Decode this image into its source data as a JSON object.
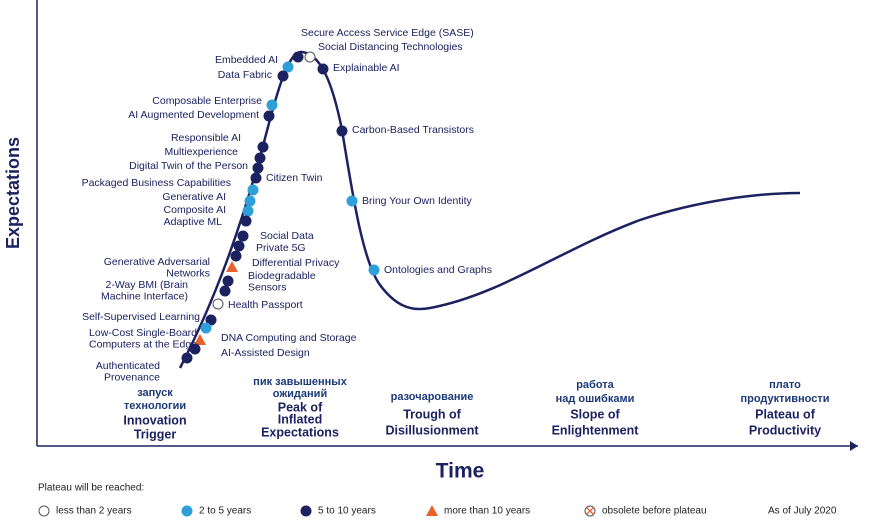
{
  "axes": {
    "y_label": "Expectations",
    "x_label": "Time"
  },
  "phases": [
    {
      "ru": [
        "запуск",
        "технологии"
      ],
      "en": [
        "Innovation",
        "Trigger"
      ]
    },
    {
      "ru": [
        "пик завышенных",
        "ожиданий"
      ],
      "en": [
        "Peak of",
        "Inflated",
        "Expectations"
      ]
    },
    {
      "ru": [
        "разочарование"
      ],
      "en": [
        "Trough of",
        "Disillusionment"
      ]
    },
    {
      "ru": [
        "работа",
        "над ошибками"
      ],
      "en": [
        "Slope of",
        "Enlightenment"
      ]
    },
    {
      "ru": [
        "плато",
        "продуктивности"
      ],
      "en": [
        "Plateau of",
        "Productivity"
      ]
    }
  ],
  "technologies": [
    {
      "label": "Secure Access Service Edge (SASE)",
      "reached": "5 to 10 years"
    },
    {
      "label": "Social Distancing Technologies",
      "reached": "less than 2 years"
    },
    {
      "label": "Embedded AI",
      "reached": "2 to 5 years"
    },
    {
      "label": "Data Fabric",
      "reached": "5 to 10 years"
    },
    {
      "label": "Explainable AI",
      "reached": "5 to 10 years"
    },
    {
      "label": "Composable Enterprise",
      "reached": "2 to 5 years"
    },
    {
      "label": "AI Augmented Development",
      "reached": "5 to 10 years"
    },
    {
      "label": "Carbon-Based Transistors",
      "reached": "5 to 10 years"
    },
    {
      "label": "Responsible AI",
      "reached": "5 to 10 years"
    },
    {
      "label": "Multiexperience",
      "reached": "5 to 10 years"
    },
    {
      "label": "Digital Twin of the Person",
      "reached": "5 to 10 years"
    },
    {
      "label": "Citizen Twin",
      "reached": "5 to 10 years"
    },
    {
      "label": "Packaged Business Capabilities",
      "reached": "2 to 5 years"
    },
    {
      "label": "Generative AI",
      "reached": "2 to 5 years"
    },
    {
      "label": "Bring Your Own Identity",
      "reached": "2 to 5 years"
    },
    {
      "label": "Composite AI",
      "reached": "2 to 5 years"
    },
    {
      "label": "Adaptive ML",
      "reached": "5 to 10 years"
    },
    {
      "label": "Social Data",
      "reached": "5 to 10 years"
    },
    {
      "label": "Private 5G",
      "reached": "5 to 10 years"
    },
    {
      "label": "Differential Privacy",
      "reached": "5 to 10 years"
    },
    {
      "label": [
        "Generative Adversarial",
        "Networks"
      ],
      "reached": "5 to 10 years"
    },
    {
      "label": [
        "Biodegradable",
        "Sensors"
      ],
      "reached": "more than 10 years"
    },
    {
      "label": [
        "2-Way BMI (Brain",
        "Machine Interface)"
      ],
      "reached": "5 to 10 years"
    },
    {
      "label": "Ontologies and Graphs",
      "reached": "2 to 5 years"
    },
    {
      "label": "Health Passport",
      "reached": "less than 2 years"
    },
    {
      "label": "Self-Supervised Learning",
      "reached": "5 to 10 years"
    },
    {
      "label": [
        "Low-Cost Single-Board",
        "Computers at the Edge"
      ],
      "reached": "2 to 5 years"
    },
    {
      "label": "DNA Computing and Storage",
      "reached": "more than 10 years"
    },
    {
      "label": "AI-Assisted Design",
      "reached": "5 to 10 years"
    },
    {
      "label": [
        "Authenticated",
        "Provenance"
      ],
      "reached": "5 to 10 years"
    }
  ],
  "legend": {
    "title": "Plateau will be reached:",
    "items": [
      {
        "label": "less than 2 years",
        "shape": "circle",
        "color": "#ffffff"
      },
      {
        "label": "2 to 5 years",
        "shape": "circle",
        "color": "#2e9fd9"
      },
      {
        "label": "5 to 10 years",
        "shape": "circle",
        "color": "#1c2260"
      },
      {
        "label": "more than 10 years",
        "shape": "triangle",
        "color": "#e8622c"
      },
      {
        "label": "obsolete before plateau",
        "shape": "crossed-circle",
        "color": "#ffffff"
      }
    ]
  },
  "as_of": "As of July 2020"
}
